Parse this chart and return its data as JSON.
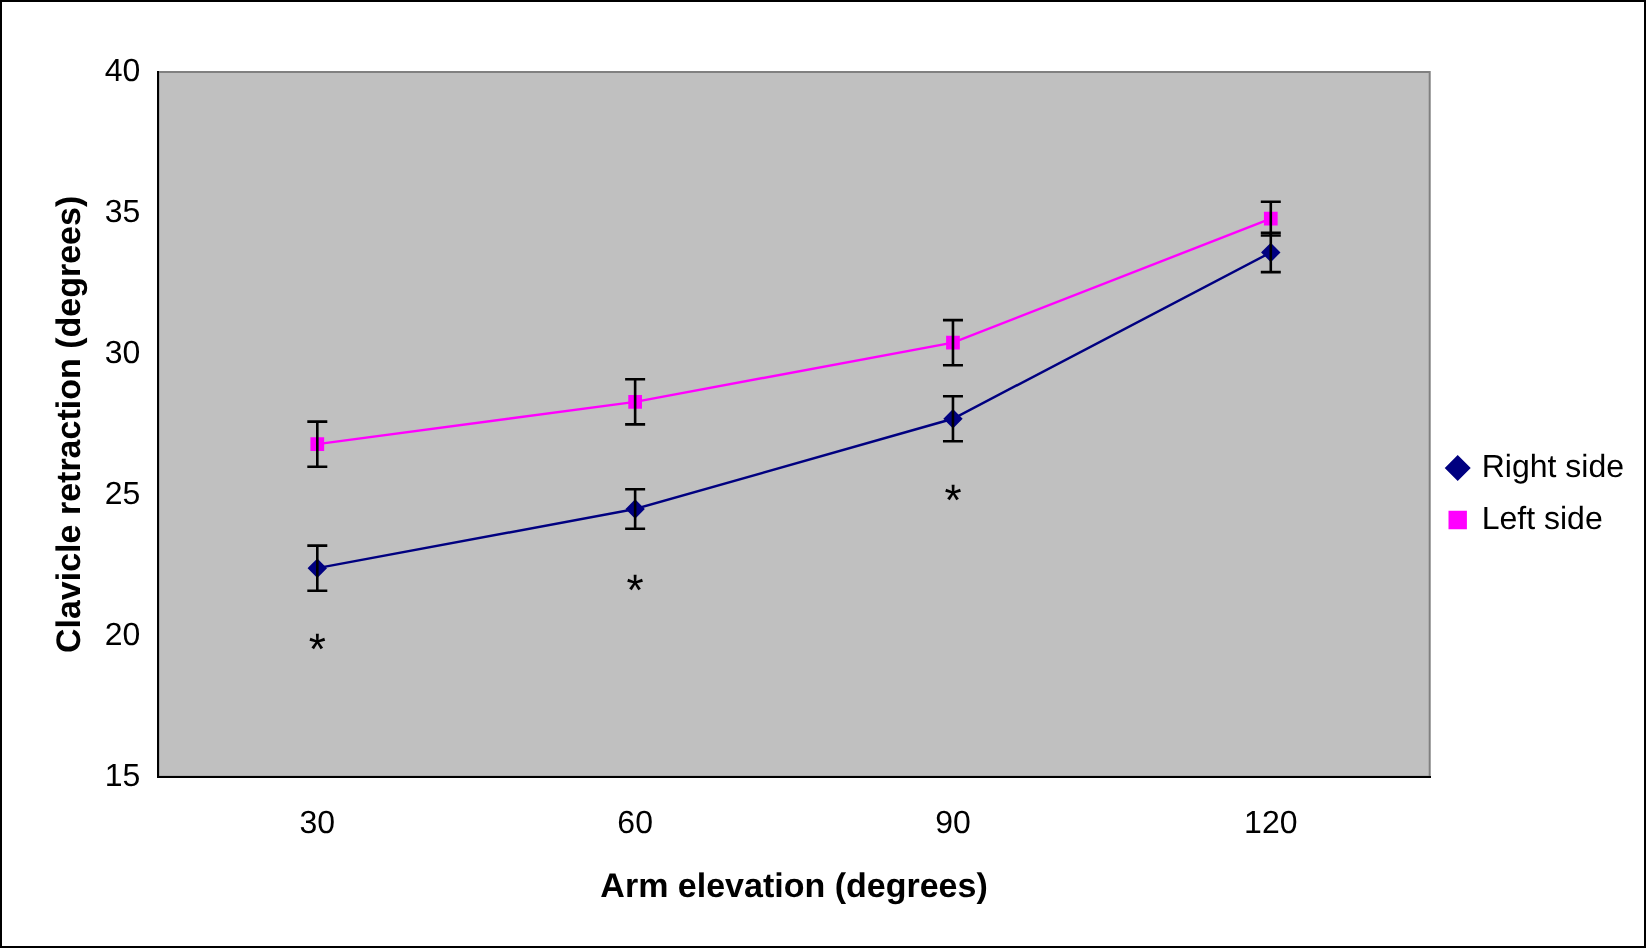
{
  "chart_data": {
    "type": "line",
    "xlabel": "Arm elevation (degrees)",
    "ylabel": "Clavicle retraction (degrees)",
    "categories": [
      "30",
      "60",
      "90",
      "120"
    ],
    "series": [
      {
        "name": "Right side",
        "color": "#000080",
        "marker": "diamond",
        "values": [
          22.4,
          24.5,
          27.7,
          33.6
        ],
        "errors": [
          0.8,
          0.7,
          0.8,
          0.7
        ]
      },
      {
        "name": "Left side",
        "color": "#ff00ff",
        "marker": "square",
        "values": [
          26.8,
          28.3,
          30.4,
          34.8
        ],
        "errors": [
          0.8,
          0.8,
          0.8,
          0.6
        ]
      }
    ],
    "ylim": [
      15,
      40
    ],
    "yticks": [
      15,
      20,
      25,
      30,
      35,
      40
    ],
    "grid": false,
    "legend": "right",
    "annotations": [
      "*",
      "*",
      "*"
    ]
  }
}
